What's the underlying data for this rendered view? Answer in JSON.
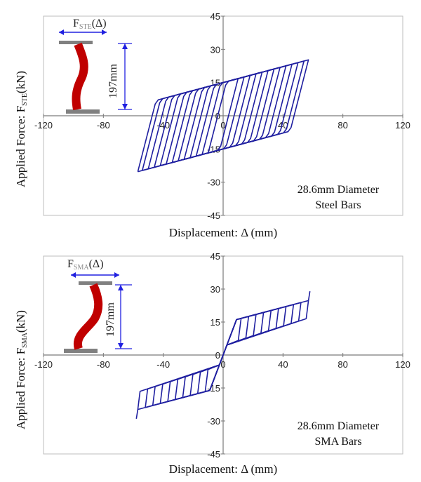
{
  "colors": {
    "curve": "#1f1fa0",
    "rod": "#c00000",
    "plate": "#808080",
    "arrow": "#2020e0",
    "axis": "#7a7a7a"
  },
  "chart_data": [
    {
      "type": "line",
      "xlabel": "Displacement: Δ (mm)",
      "ylabel_prefix": "Applied Force: F",
      "ylabel_sub": "STE",
      "ylabel_suffix": "(kN)",
      "xlim": [
        -120,
        120
      ],
      "ylim": [
        -45,
        45
      ],
      "xticks": [
        "-120",
        "-80",
        "-40",
        "0",
        "40",
        "80",
        "120"
      ],
      "yticks": [
        "45",
        "30",
        "15",
        "0",
        "-15",
        "-30",
        "-45"
      ],
      "annotation_line1": "28.6mm Diameter",
      "annotation_line2": "Steel Bars",
      "inset_force_label": "F",
      "inset_force_sub": "STE",
      "inset_force_arg": "(Δ)",
      "inset_height_label": "197mm",
      "hysteresis": {
        "model": "elastic-plastic",
        "loop_amplitudes_mm": [
          10,
          14,
          18,
          22,
          26,
          30,
          34,
          38,
          42,
          46,
          50,
          54,
          57
        ],
        "elastic_stiffness_kN_per_mm": 2.2,
        "yield_intercept_kN": 15,
        "hardening_kN_per_mm": 0.18
      }
    },
    {
      "type": "line",
      "xlabel": "Displacement: Δ (mm)",
      "ylabel_prefix": "Applied Force: F",
      "ylabel_sub": "SMA",
      "ylabel_suffix": "(kN)",
      "xlim": [
        -120,
        120
      ],
      "ylim": [
        -45,
        45
      ],
      "xticks": [
        "-120",
        "-80",
        "-40",
        "0",
        "40",
        "80",
        "120"
      ],
      "yticks": [
        "45",
        "30",
        "15",
        "0",
        "-15",
        "-30",
        "-45"
      ],
      "annotation_line1": "28.6mm Diameter",
      "annotation_line2": "SMA Bars",
      "inset_force_label": "F",
      "inset_force_sub": "SMA",
      "inset_force_arg": "(Δ)",
      "inset_height_label": "197mm",
      "hysteresis": {
        "model": "flag-shaped",
        "loop_amplitudes_mm": [
          12,
          17,
          22,
          27,
          32,
          37,
          42,
          47,
          52,
          57
        ],
        "elastic_stiffness_kN_per_mm": 1.8,
        "upper_plateau_intercept_kN": 14.5,
        "upper_plateau_slope_kN_per_mm": 0.18,
        "lower_plateau_intercept_kN": 4,
        "lower_plateau_slope_kN_per_mm": 0.22,
        "ultimate_point": [
          58,
          29
        ]
      }
    }
  ]
}
